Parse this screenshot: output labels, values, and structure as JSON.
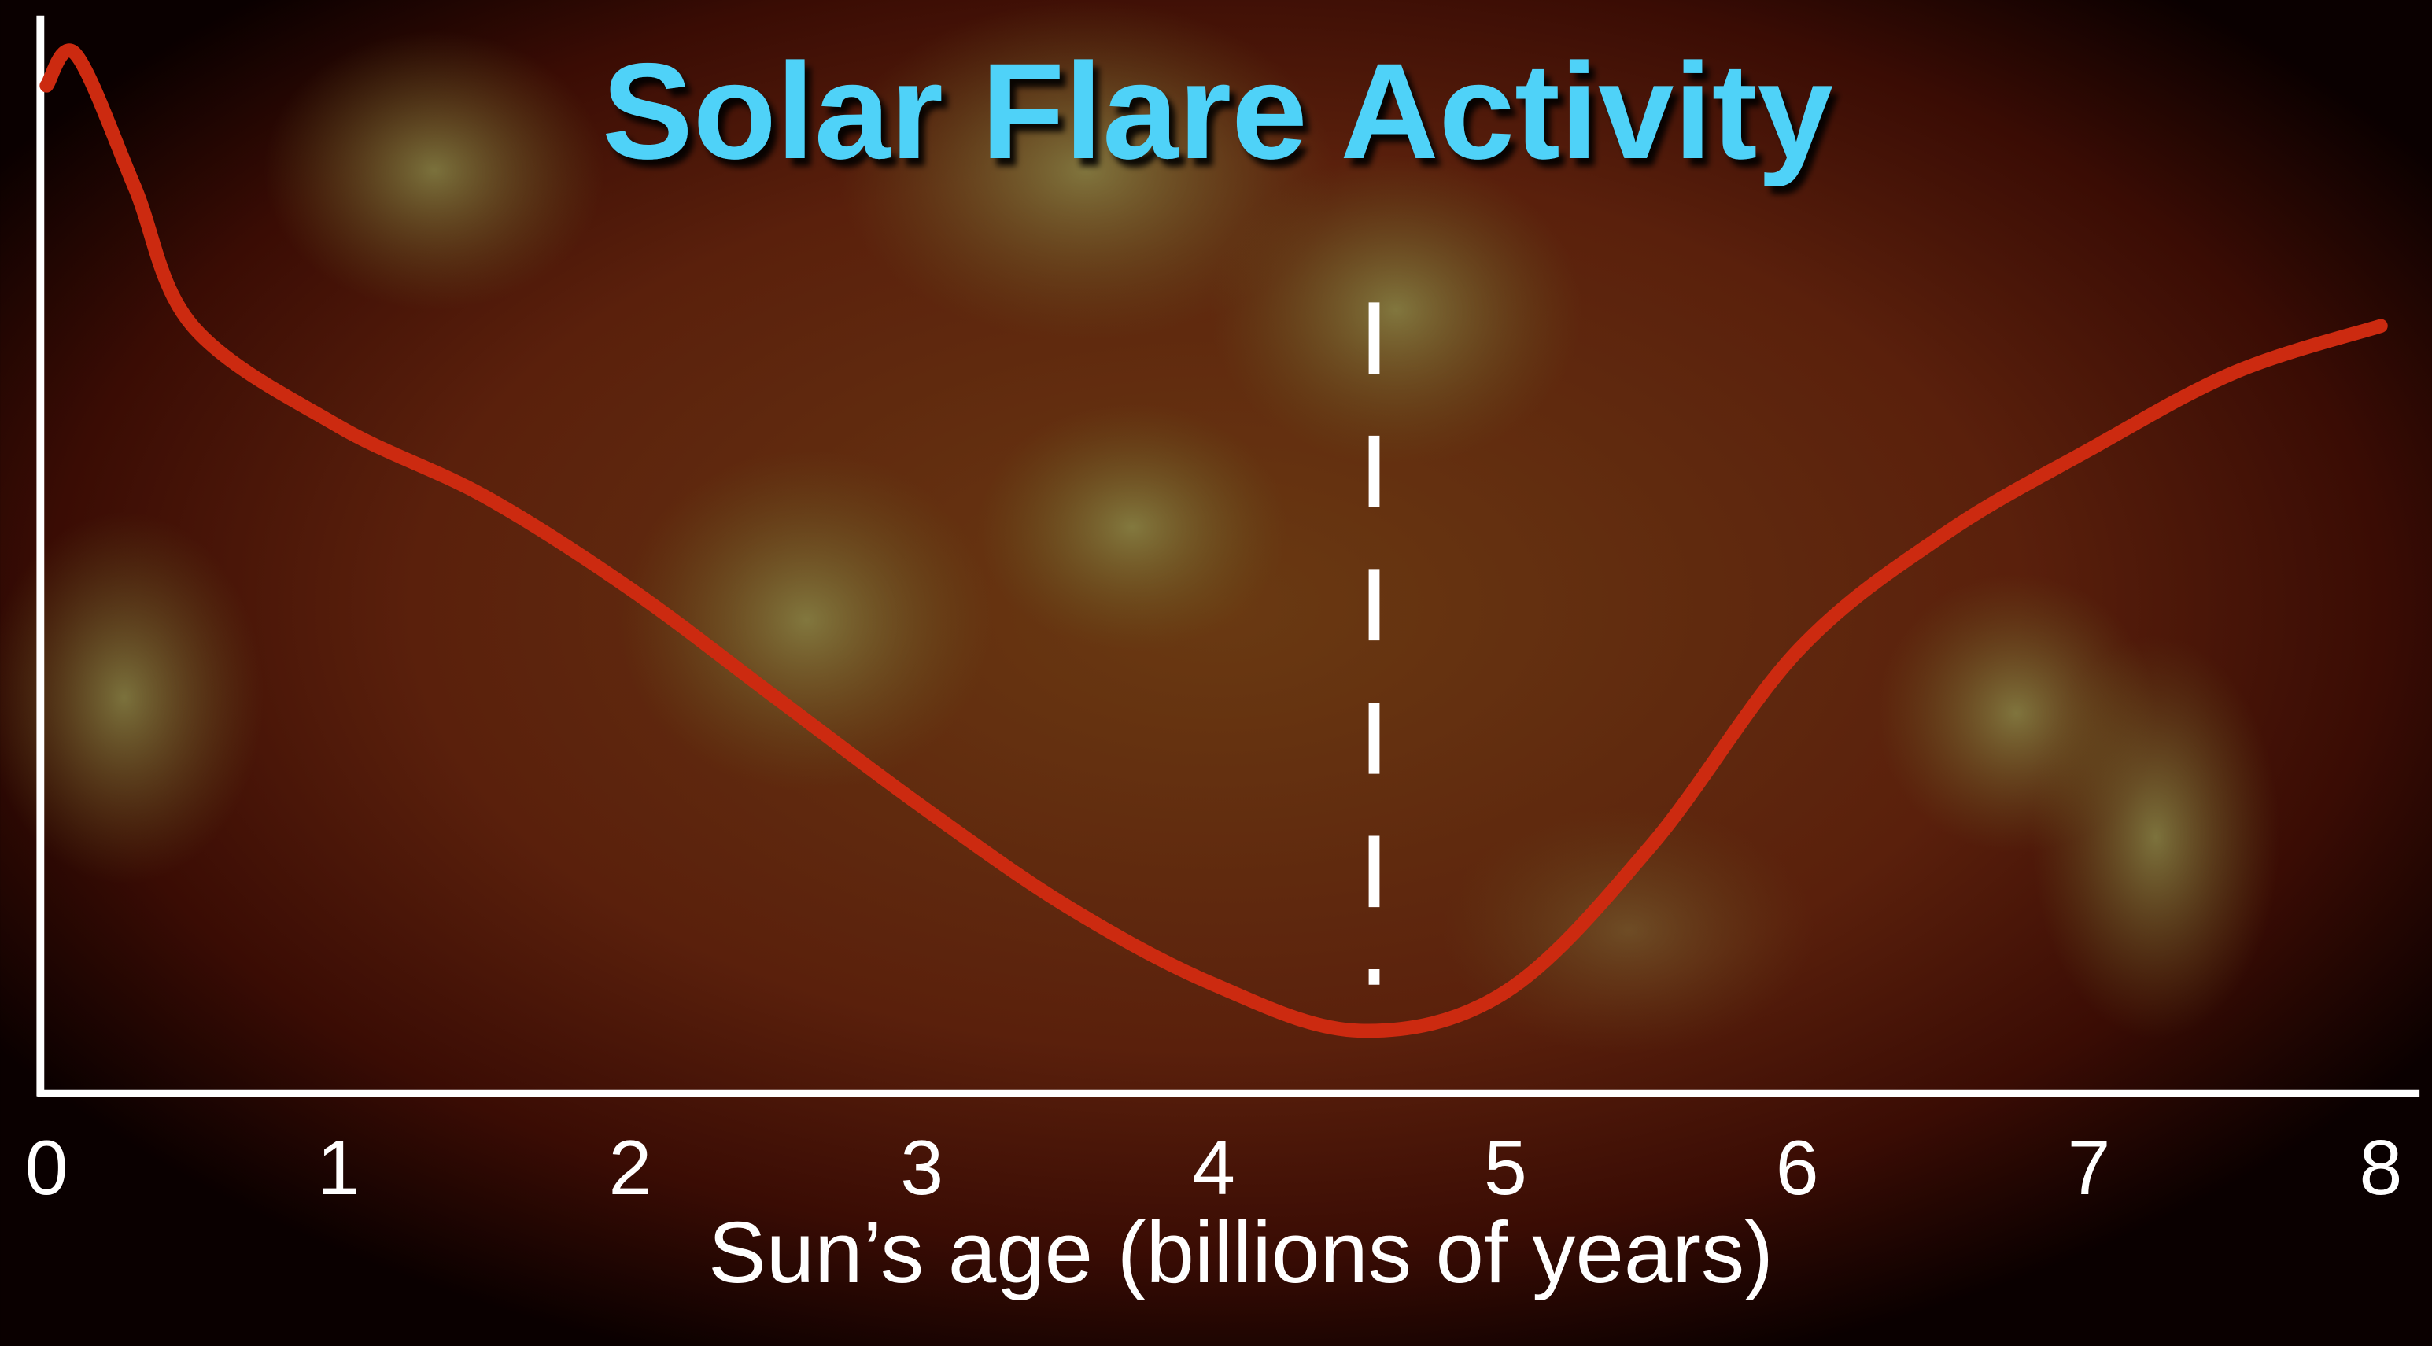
{
  "chart_data": {
    "type": "line",
    "title": "Solar Flare Activity",
    "x_label": "Sun’s age (billions of years)",
    "x": [
      0,
      0.1,
      0.3,
      0.5,
      1,
      1.5,
      2,
      2.5,
      3,
      3.5,
      4,
      4.5,
      5,
      5.5,
      6,
      6.5,
      7,
      7.5,
      8
    ],
    "series": [
      {
        "color": "#cc2a10",
        "values": [
          93.5,
          96.4,
          84.2,
          71.2,
          61.9,
          55.4,
          46.8,
          36.7,
          26.6,
          17.3,
          10.1,
          5.8,
          9.4,
          23.0,
          41.0,
          51.8,
          59.7,
          66.9,
          71.2
        ]
      }
    ],
    "xlim": [
      0,
      8
    ],
    "xticks": [
      0,
      1,
      2,
      3,
      4,
      5,
      6,
      7,
      8
    ],
    "ylim": [
      0,
      100
    ],
    "vline": 4.55
  }
}
